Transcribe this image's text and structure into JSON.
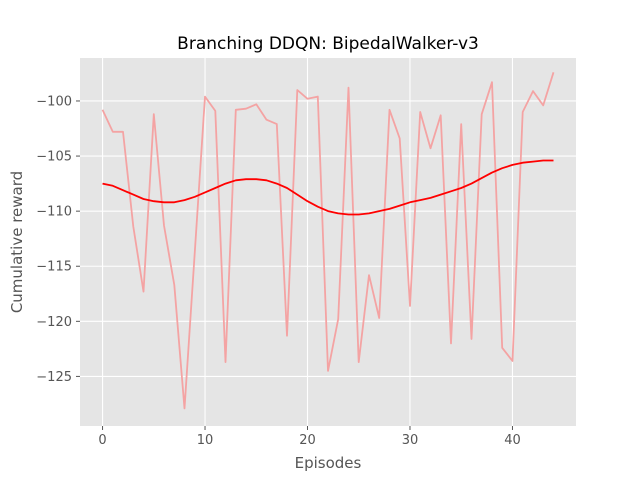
{
  "chart_data": {
    "type": "line",
    "title": "Branching DDQN: BipedalWalker-v3",
    "xlabel": "Episodes",
    "ylabel": "Cumulative reward",
    "xlim": [
      -2.2,
      46.2
    ],
    "ylim": [
      -129.5,
      -96.1
    ],
    "xticks": [
      0,
      10,
      20,
      30,
      40
    ],
    "yticks": [
      -125,
      -120,
      -115,
      -110,
      -105,
      -100
    ],
    "grid": true,
    "legend": "none",
    "style": {
      "background": "#E5E5E5",
      "grid_color": "#FFFFFF"
    },
    "series": [
      {
        "role": "raw",
        "color": "#F4A3A3",
        "x": [
          0,
          1,
          2,
          3,
          4,
          5,
          6,
          7,
          8,
          9,
          10,
          11,
          12,
          13,
          14,
          15,
          16,
          17,
          18,
          19,
          20,
          21,
          22,
          23,
          24,
          25,
          26,
          27,
          28,
          29,
          30,
          31,
          32,
          33,
          34,
          35,
          36,
          37,
          38,
          39,
          40,
          41,
          42,
          43,
          44
        ],
        "values": [
          -100.8,
          -102.8,
          -102.8,
          -111.4,
          -117.3,
          -101.2,
          -111.3,
          -116.7,
          -127.9,
          -113.7,
          -99.6,
          -100.9,
          -123.7,
          -100.8,
          -100.7,
          -100.3,
          -101.7,
          -102.1,
          -121.3,
          -99.0,
          -99.8,
          -99.6,
          -124.5,
          -119.8,
          -98.8,
          -123.7,
          -115.8,
          -119.7,
          -100.8,
          -103.4,
          -118.6,
          -101.0,
          -104.3,
          -101.3,
          -122.0,
          -102.1,
          -121.6,
          -101.2,
          -98.3,
          -122.4,
          -123.6,
          -101.0,
          -99.1,
          -100.4,
          -97.4
        ]
      },
      {
        "role": "smoothed",
        "color": "#FF0000",
        "x": [
          0,
          1,
          2,
          3,
          4,
          5,
          6,
          7,
          8,
          9,
          10,
          11,
          12,
          13,
          14,
          15,
          16,
          17,
          18,
          19,
          20,
          21,
          22,
          23,
          24,
          25,
          26,
          27,
          28,
          29,
          30,
          31,
          32,
          33,
          34,
          35,
          36,
          37,
          38,
          39,
          40,
          41,
          42,
          43,
          44
        ],
        "values": [
          -107.5,
          -107.7,
          -108.1,
          -108.5,
          -108.9,
          -109.1,
          -109.2,
          -109.2,
          -109.0,
          -108.7,
          -108.3,
          -107.9,
          -107.5,
          -107.2,
          -107.1,
          -107.1,
          -107.2,
          -107.5,
          -107.9,
          -108.5,
          -109.1,
          -109.6,
          -110.0,
          -110.2,
          -110.3,
          -110.3,
          -110.2,
          -110.0,
          -109.8,
          -109.5,
          -109.2,
          -109.0,
          -108.8,
          -108.5,
          -108.2,
          -107.9,
          -107.5,
          -107.0,
          -106.5,
          -106.1,
          -105.8,
          -105.6,
          -105.5,
          -105.4,
          -105.4
        ]
      }
    ]
  }
}
